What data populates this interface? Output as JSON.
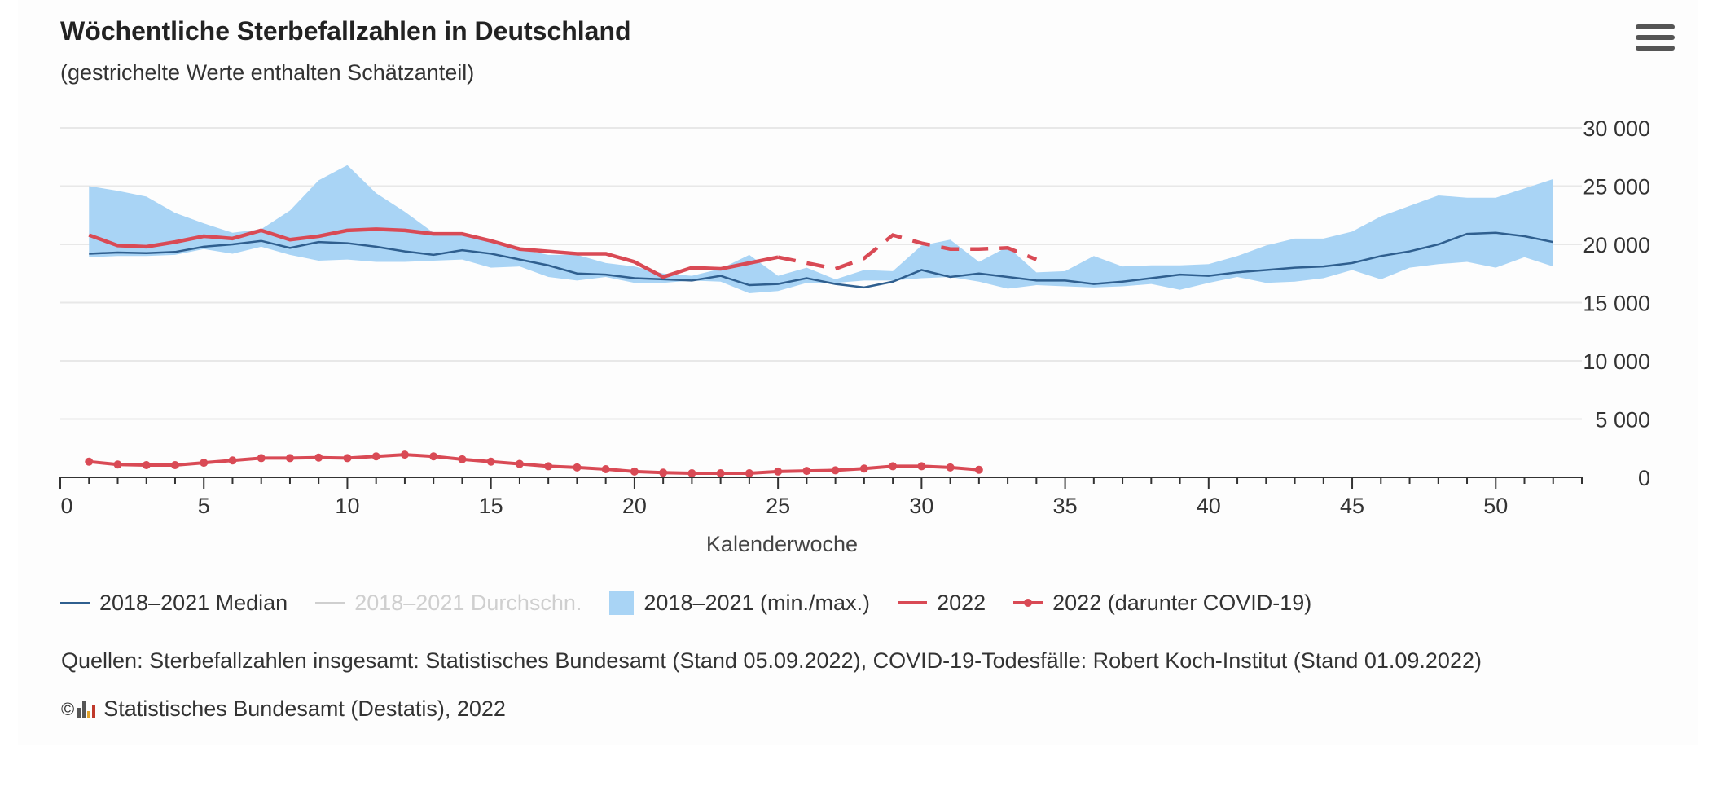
{
  "header": {
    "title": "Wöchentliche Sterbefallzahlen in Deutschland",
    "subtitle": "(gestrichelte Werte enthalten Schätzanteil)"
  },
  "menu_icon": "hamburger-menu-icon",
  "legend": {
    "median": "2018–2021 Median",
    "avg": "2018–2021 Durchschn.",
    "range": "2018–2021 (min./max.)",
    "y2022": "2022",
    "covid": "2022 (darunter COVID-19)"
  },
  "footer": {
    "source": "Quellen: Sterbefallzahlen insgesamt: Statistisches Bundesamt (Stand 05.09.2022), COVID-19-Todesfälle: Robert Koch-Institut (Stand 01.09.2022)",
    "copyright_symbol": "©",
    "credit": "Statistisches Bundesamt (Destatis), 2022"
  },
  "colors": {
    "median": "#2f5f8f",
    "range": "#a9d4f5",
    "y2022": "#d94a55",
    "avg_muted": "#cfcfcf",
    "grid": "#e8e8e8"
  },
  "chart_data": {
    "type": "line",
    "xlabel": "Kalenderwoche",
    "ylabel": "",
    "xlim": [
      0,
      53
    ],
    "ylim": [
      0,
      30000
    ],
    "x_ticks": [
      0,
      5,
      10,
      15,
      20,
      25,
      30,
      35,
      40,
      45,
      50
    ],
    "y_ticks": [
      0,
      5000,
      10000,
      15000,
      20000,
      25000,
      30000
    ],
    "y_tick_labels": [
      "0",
      "5 000",
      "10 000",
      "15 000",
      "20 000",
      "25 000",
      "30 000"
    ],
    "weeks": [
      1,
      2,
      3,
      4,
      5,
      6,
      7,
      8,
      9,
      10,
      11,
      12,
      13,
      14,
      15,
      16,
      17,
      18,
      19,
      20,
      21,
      22,
      23,
      24,
      25,
      26,
      27,
      28,
      29,
      30,
      31,
      32,
      33,
      34,
      35,
      36,
      37,
      38,
      39,
      40,
      41,
      42,
      43,
      44,
      45,
      46,
      47,
      48,
      49,
      50,
      51,
      52
    ],
    "series": [
      {
        "name": "2018–2021 Median",
        "type": "line",
        "values": [
          19200,
          19300,
          19250,
          19350,
          19800,
          20000,
          20300,
          19700,
          20200,
          20100,
          19800,
          19400,
          19100,
          19500,
          19200,
          18700,
          18200,
          17500,
          17400,
          17100,
          17000,
          16900,
          17300,
          16500,
          16600,
          17100,
          16600,
          16300,
          16800,
          17800,
          17200,
          17500,
          17200,
          16900,
          16900,
          16600,
          16800,
          17100,
          17400,
          17300,
          17600,
          17800,
          18000,
          18100,
          18400,
          19000,
          19400,
          20000,
          20900,
          21000,
          20700,
          20200
        ]
      },
      {
        "name": "2018–2021 (min./max.)",
        "type": "arearange",
        "min": [
          18900,
          19000,
          19000,
          19100,
          19600,
          19200,
          19800,
          19100,
          18600,
          18700,
          18500,
          18500,
          18600,
          18700,
          18000,
          18100,
          17200,
          16900,
          17200,
          16700,
          16700,
          16900,
          16800,
          15800,
          16000,
          16700,
          16700,
          16900,
          16900,
          17100,
          17200,
          16800,
          16200,
          16500,
          16400,
          16300,
          16400,
          16600,
          16100,
          16700,
          17200,
          16700,
          16800,
          17100,
          17800,
          17000,
          18000,
          18300,
          18500,
          18000,
          18900,
          18100
        ],
        "max": [
          25000,
          24600,
          24100,
          22700,
          21800,
          21000,
          21300,
          22900,
          25500,
          26800,
          24400,
          22800,
          21000,
          20800,
          20400,
          19600,
          19100,
          19100,
          18400,
          18100,
          17500,
          17300,
          17900,
          19100,
          17300,
          18000,
          17000,
          17800,
          17700,
          19900,
          20400,
          18500,
          19800,
          17600,
          17700,
          19000,
          18100,
          18200,
          18200,
          18300,
          19000,
          19900,
          20500,
          20500,
          21100,
          22400,
          23300,
          24200,
          24000,
          24000,
          24800,
          25600
        ]
      },
      {
        "name": "2022",
        "type": "line",
        "values": [
          20800,
          19900,
          19800,
          20200,
          20700,
          20500,
          21200,
          20400,
          20700,
          21200,
          21300,
          21200,
          20900,
          20900,
          20300,
          19600,
          19400,
          19200,
          19200,
          18500,
          17200,
          18000,
          17900,
          18400,
          18900,
          18400,
          17900,
          18800,
          20800,
          20100,
          19600,
          19600,
          19700,
          18700
        ],
        "solid_until_week": 25,
        "dashed_from_week": 25
      },
      {
        "name": "2022 (darunter COVID-19)",
        "type": "line-markers",
        "values": [
          1350,
          1100,
          1050,
          1050,
          1250,
          1450,
          1650,
          1650,
          1700,
          1650,
          1800,
          1950,
          1800,
          1550,
          1350,
          1150,
          950,
          850,
          700,
          500,
          400,
          350,
          350,
          350,
          500,
          550,
          600,
          750,
          950,
          950,
          850,
          650
        ]
      }
    ],
    "legend_position": "bottom-left",
    "grid": true
  }
}
